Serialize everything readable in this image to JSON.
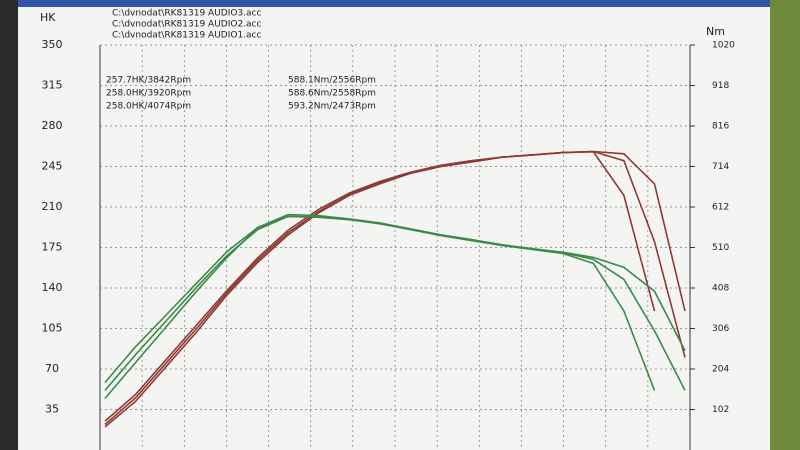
{
  "chart_data": {
    "type": "line",
    "y_label": "HK",
    "y2_label": "Nm",
    "files": [
      "C:\\dvnodat\\RK81319 AUDIO3.acc",
      "C:\\dvnodat\\RK81319 AUDIO2.acc",
      "C:\\dvnodat\\RK81319 AUDIO1.acc"
    ],
    "categories": [
      null,
      null,
      null,
      null,
      null,
      null,
      null,
      null,
      null,
      null,
      null,
      null,
      null,
      null,
      null,
      null,
      null,
      null,
      null,
      null
    ],
    "ylim": [
      0,
      350
    ],
    "yticks": [
      35,
      70,
      105,
      140,
      175,
      210,
      245,
      280,
      315,
      350
    ],
    "y2lim": [
      0,
      1020
    ],
    "y2ticks": [
      102,
      204,
      306,
      408,
      510,
      612,
      714,
      816,
      918,
      1020
    ],
    "grid": true,
    "series": [
      {
        "name": "257.7HK/3842Rpm",
        "color": "#8e3b36",
        "values": [
          25,
          48,
          78,
          108,
          138,
          166,
          190,
          208,
          222,
          232,
          240,
          246,
          250,
          253,
          255,
          257,
          257.7,
          220,
          120,
          null
        ]
      },
      {
        "name": "258.0HK/3920Rpm",
        "color": "#8e3b36",
        "values": [
          22,
          45,
          75,
          105,
          136,
          164,
          188,
          206,
          221,
          231,
          239,
          245,
          249,
          253,
          255,
          257,
          258,
          250,
          180,
          80
        ]
      },
      {
        "name": "258.0HK/4074Rpm",
        "color": "#8e3b36",
        "values": [
          20,
          42,
          72,
          102,
          134,
          162,
          186,
          205,
          220,
          230,
          239,
          245,
          249,
          253,
          255,
          257,
          258,
          256,
          230,
          120
        ]
      },
      {
        "name": "588.1Nm/2556Rpm",
        "color": "#3b8a4a",
        "axis": "y2",
        "values": [
          170,
          260,
          340,
          420,
          500,
          560,
          588.1,
          586,
          580,
          570,
          555,
          540,
          528,
          515,
          505,
          495,
          470,
          350,
          150,
          null
        ]
      },
      {
        "name": "588.6Nm/2558Rpm",
        "color": "#3b8a4a",
        "axis": "y2",
        "values": [
          150,
          240,
          325,
          410,
          490,
          555,
          588.6,
          587,
          581,
          570,
          556,
          541,
          528,
          516,
          506,
          497,
          480,
          430,
          300,
          150
        ]
      },
      {
        "name": "593.2Nm/2473Rpm",
        "color": "#3b8a4a",
        "axis": "y2",
        "values": [
          130,
          220,
          310,
          400,
          485,
          560,
          593.2,
          590,
          582,
          572,
          557,
          542,
          530,
          517,
          507,
          498,
          485,
          460,
          400,
          250
        ]
      }
    ]
  }
}
